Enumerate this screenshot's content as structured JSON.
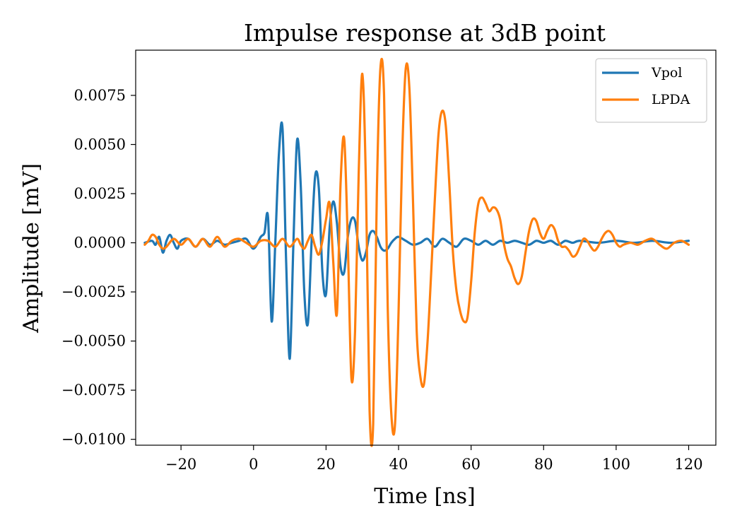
{
  "chart_data": {
    "type": "line",
    "title": "Impulse response at 3dB point",
    "xlabel": "Time [ns]",
    "ylabel": "Amplitude [mV]",
    "xlim": [
      -32.5,
      127.5
    ],
    "ylim": [
      -0.0103,
      0.0098
    ],
    "xticks": [
      -20,
      0,
      20,
      40,
      60,
      80,
      100,
      120
    ],
    "xtick_labels": [
      "−20",
      "0",
      "20",
      "40",
      "60",
      "80",
      "100",
      "120"
    ],
    "yticks": [
      0.0075,
      0.005,
      0.0025,
      0,
      -0.0025,
      -0.005,
      -0.0075,
      -0.01
    ],
    "ytick_labels": [
      "0.0075",
      "0.0050",
      "0.0025",
      "0.0000",
      "−0.0025",
      "−0.0050",
      "−0.0075",
      "−0.0100"
    ],
    "grid": false,
    "legend_position": "top-right",
    "series": [
      {
        "name": "Vpol",
        "color": "#1f77b4",
        "x": [
          -30,
          -28,
          -27,
          -26,
          -25,
          -24,
          -23,
          -22,
          -21,
          -20,
          -18,
          -16,
          -14,
          -12,
          -10,
          -8,
          -6,
          -4,
          -2,
          0,
          2,
          3,
          4,
          5,
          6,
          7,
          8,
          9,
          10,
          11,
          12,
          13,
          14,
          15,
          16,
          17,
          18,
          19,
          20,
          21,
          22,
          23,
          24,
          25,
          26,
          27,
          28,
          29,
          30,
          31,
          32,
          33,
          34,
          35,
          36,
          37,
          38,
          39,
          40,
          42,
          44,
          46,
          48,
          50,
          52,
          54,
          56,
          58,
          60,
          62,
          64,
          66,
          68,
          70,
          72,
          74,
          76,
          78,
          80,
          82,
          84,
          86,
          88,
          90,
          95,
          100,
          105,
          110,
          115,
          120
        ],
        "y": [
          0.0,
          0.0001,
          -0.0001,
          0.0003,
          -0.0005,
          0.0001,
          0.0004,
          0.0,
          -0.0003,
          0.0001,
          0.0002,
          -0.0002,
          0.0002,
          -0.0001,
          0.0001,
          -0.0001,
          0.0,
          0.0001,
          0.0002,
          -0.0003,
          0.0003,
          0.0005,
          0.0013,
          -0.004,
          0.0,
          0.0045,
          0.0058,
          -0.001,
          -0.0059,
          0.0,
          0.0052,
          0.003,
          -0.0025,
          -0.0041,
          0.0,
          0.0034,
          0.0028,
          -0.0015,
          -0.0026,
          0.0008,
          0.0021,
          0.001,
          -0.0012,
          -0.0015,
          0.0003,
          0.0012,
          0.0011,
          -0.0002,
          -0.0009,
          -0.0005,
          0.0004,
          0.0006,
          0.0003,
          -0.0002,
          -0.0004,
          -0.0003,
          0.0,
          0.0002,
          0.0003,
          0.0001,
          -0.0001,
          0.0,
          0.0002,
          -0.0002,
          0.0002,
          0.0,
          -0.0002,
          0.0002,
          0.0001,
          -0.0001,
          0.0001,
          -0.0001,
          0.0001,
          0.0,
          0.0001,
          0.0,
          -0.0001,
          0.0001,
          0.0,
          0.0001,
          -0.0001,
          0.0001,
          0.0,
          0.0001,
          0.0,
          0.0001,
          0.0,
          0.0001,
          0.0,
          0.0001
        ]
      },
      {
        "name": "LPDA",
        "color": "#ff7f0e",
        "x": [
          -30,
          -29,
          -28,
          -27,
          -26,
          -25,
          -24,
          -22,
          -20,
          -18,
          -16,
          -14,
          -12,
          -10,
          -8,
          -6,
          -4,
          -2,
          0,
          2,
          4,
          6,
          8,
          10,
          12,
          13,
          14,
          15,
          16,
          17,
          18,
          19,
          20,
          21,
          22,
          23,
          24,
          25,
          26,
          27,
          28,
          29,
          30,
          31,
          32,
          33,
          34,
          35,
          36,
          37,
          38,
          39,
          40,
          41,
          42,
          43,
          44,
          45,
          46,
          47,
          48,
          49,
          50,
          51,
          52,
          53,
          54,
          55,
          56,
          57,
          58,
          59,
          60,
          61,
          62,
          63,
          64,
          65,
          66,
          67,
          68,
          69,
          70,
          71,
          72,
          73,
          74,
          75,
          76,
          77,
          78,
          79,
          80,
          81,
          82,
          83,
          84,
          85,
          86,
          87,
          88,
          89,
          90,
          91,
          92,
          93,
          94,
          95,
          96,
          97,
          98,
          99,
          100,
          101,
          102,
          104,
          106,
          108,
          110,
          112,
          114,
          116,
          118,
          120
        ],
        "y": [
          -0.0001,
          0.0001,
          0.0004,
          0.0003,
          -0.0001,
          -0.0003,
          -0.0002,
          0.0002,
          -0.0001,
          0.0002,
          -0.0002,
          0.0002,
          -0.0002,
          0.0003,
          -0.0002,
          0.0001,
          0.0002,
          0.0,
          -0.0002,
          0.0001,
          0.0001,
          -0.0002,
          0.0002,
          -0.0002,
          0.0002,
          -0.0001,
          -0.0003,
          0.0001,
          0.0004,
          -0.0002,
          -0.0006,
          0.0001,
          0.0012,
          0.002,
          -0.001,
          -0.0036,
          0.003,
          0.0053,
          0.0,
          -0.0069,
          -0.0045,
          0.0035,
          0.0086,
          0.003,
          -0.0085,
          -0.0092,
          0.0025,
          0.0089,
          0.0075,
          -0.0032,
          -0.0087,
          -0.0093,
          -0.0035,
          0.0045,
          0.0089,
          0.0078,
          0.002,
          -0.0045,
          -0.0068,
          -0.0072,
          -0.005,
          -0.0015,
          0.0022,
          0.0055,
          0.0067,
          0.006,
          0.003,
          -0.0005,
          -0.0025,
          -0.0035,
          -0.004,
          -0.0038,
          -0.002,
          0.0005,
          0.002,
          0.0023,
          0.002,
          0.0016,
          0.0018,
          0.0017,
          0.0012,
          0.0,
          -0.0008,
          -0.0012,
          -0.0018,
          -0.0021,
          -0.0017,
          -0.0005,
          0.0006,
          0.0012,
          0.0011,
          0.0005,
          0.0002,
          0.0006,
          0.0009,
          0.0007,
          0.0001,
          -0.0002,
          -0.0002,
          -0.0004,
          -0.0007,
          -0.0006,
          -0.0002,
          0.0002,
          0.0001,
          -0.0002,
          -0.0004,
          -0.0002,
          0.0002,
          0.0005,
          0.0006,
          0.0004,
          0.0,
          -0.0002,
          -0.0001,
          0.0,
          -0.0001,
          0.0001,
          0.0002,
          -0.0001,
          -0.0003,
          0.0,
          0.0001,
          -0.0001
        ]
      }
    ]
  }
}
